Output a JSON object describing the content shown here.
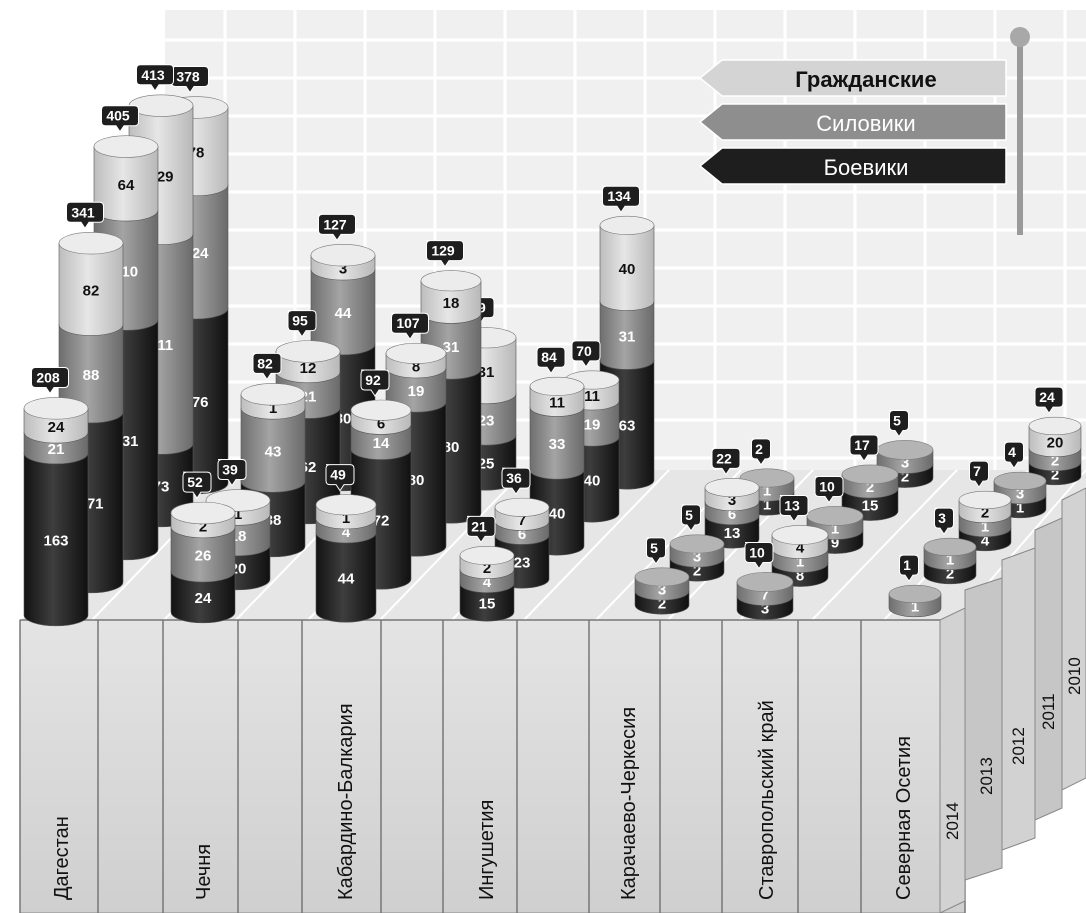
{
  "chart_data": {
    "type": "bar",
    "title": "",
    "regions": [
      "Дагестан",
      "Чечня",
      "Кабардино-Балкария",
      "Ингушетия",
      "Карачаево-Черкесия",
      "Ставропольский край",
      "Северная Осетия"
    ],
    "years": [
      "2014",
      "2013",
      "2012",
      "2011",
      "2010"
    ],
    "legend": {
      "items": [
        {
          "key": "civilians",
          "label": "Гражданские",
          "color": "#d8d8d8"
        },
        {
          "key": "security",
          "label": "Силовики",
          "color": "#8a8a8a"
        },
        {
          "key": "militants",
          "label": "Боевики",
          "color": "#2a2a2a"
        }
      ],
      "position": "top-right"
    },
    "data": [
      {
        "region": "Дагестан",
        "year": "2014",
        "militants": 163,
        "security": 21,
        "civilians": 24,
        "total": 208
      },
      {
        "region": "Дагестан",
        "year": "2013",
        "militants": 171,
        "security": 88,
        "civilians": 82,
        "total": 341
      },
      {
        "region": "Дагестан",
        "year": "2012",
        "militants": 231,
        "security": 110,
        "civilians": 64,
        "total": 405
      },
      {
        "region": "Дагестан",
        "year": "2011",
        "militants": 73,
        "security": 211,
        "civilians": 129,
        "total": 413
      },
      {
        "region": "Дагестан",
        "year": "2010",
        "militants": 176,
        "security": 124,
        "civilians": 78,
        "total": 378
      },
      {
        "region": "Чечня",
        "year": "2014",
        "militants": 24,
        "security": 26,
        "civilians": 2,
        "total": 52
      },
      {
        "region": "Чечня",
        "year": "2013",
        "militants": 20,
        "security": 18,
        "civilians": 1,
        "total": 39
      },
      {
        "region": "Чечня",
        "year": "2012",
        "militants": 38,
        "security": 43,
        "civilians": 1,
        "total": 82
      },
      {
        "region": "Чечня",
        "year": "2011",
        "militants": 62,
        "security": 21,
        "civilians": 12,
        "total": 95
      },
      {
        "region": "Чечня",
        "year": "2010",
        "militants": 80,
        "security": 44,
        "civilians": 3,
        "total": 127
      },
      {
        "region": "Кабардино-Балкария",
        "year": "2014",
        "militants": 44,
        "security": 4,
        "civilians": 1,
        "total": 49
      },
      {
        "region": "Кабардино-Балкария",
        "year": "2013",
        "militants": 72,
        "security": 14,
        "civilians": 6,
        "total": 92
      },
      {
        "region": "Кабардино-Балкария",
        "year": "2012",
        "militants": 80,
        "security": 19,
        "civilians": 8,
        "total": 107
      },
      {
        "region": "Кабардино-Балкария",
        "year": "2011",
        "militants": 80,
        "security": 31,
        "civilians": 18,
        "total": 129
      },
      {
        "region": "Кабардино-Балкария",
        "year": "2010",
        "militants": 25,
        "security": 23,
        "civilians": 31,
        "total": 79
      },
      {
        "region": "Ингушетия",
        "year": "2014",
        "militants": 15,
        "security": 4,
        "civilians": 2,
        "total": 21
      },
      {
        "region": "Ингушетия",
        "year": "2013",
        "militants": 23,
        "security": 6,
        "civilians": 7,
        "total": 36
      },
      {
        "region": "Ингушетия",
        "year": "2012",
        "militants": 40,
        "security": 33,
        "civilians": 11,
        "total": 84
      },
      {
        "region": "Ингушетия",
        "year": "2011",
        "militants": 40,
        "security": 19,
        "civilians": 11,
        "total": 70
      },
      {
        "region": "Ингушетия",
        "year": "2010",
        "militants": 63,
        "security": 31,
        "civilians": 40,
        "total": 134
      },
      {
        "region": "Карачаево-Черкесия",
        "year": "2014",
        "militants": 2,
        "security": 3,
        "civilians": 0,
        "total": 5
      },
      {
        "region": "Карачаево-Черкесия",
        "year": "2013",
        "militants": 2,
        "security": 3,
        "civilians": 0,
        "total": 5
      },
      {
        "region": "Карачаево-Черкесия",
        "year": "2012",
        "militants": 13,
        "security": 6,
        "civilians": 3,
        "total": 22
      },
      {
        "region": "Карачаево-Черкесия",
        "year": "2011",
        "militants": 1,
        "security": 1,
        "civilians": 0,
        "total": 2
      },
      {
        "region": "Ставропольский край",
        "year": "2014",
        "militants": 3,
        "security": 7,
        "civilians": 0,
        "total": 10
      },
      {
        "region": "Ставропольский край",
        "year": "2013",
        "militants": 8,
        "security": 1,
        "civilians": 4,
        "total": 13
      },
      {
        "region": "Ставропольский край",
        "year": "2012",
        "militants": 9,
        "security": 1,
        "civilians": 0,
        "total": 10
      },
      {
        "region": "Ставропольский край",
        "year": "2011",
        "militants": 15,
        "security": 2,
        "civilians": 0,
        "total": 17
      },
      {
        "region": "Ставропольский край",
        "year": "2010",
        "militants": 2,
        "security": 3,
        "civilians": 0,
        "total": 5
      },
      {
        "region": "Северная Осетия",
        "year": "2014",
        "militants": 0,
        "security": 1,
        "civilians": 0,
        "total": 1
      },
      {
        "region": "Северная Осетия",
        "year": "2013",
        "militants": 2,
        "security": 1,
        "civilians": 0,
        "total": 3
      },
      {
        "region": "Северная Осетия",
        "year": "2012",
        "militants": 4,
        "security": 1,
        "civilians": 2,
        "total": 7
      },
      {
        "region": "Северная Осетия",
        "year": "2011",
        "militants": 1,
        "security": 3,
        "civilians": 0,
        "total": 4
      },
      {
        "region": "Северная Осетия",
        "year": "2010",
        "militants": 2,
        "security": 2,
        "civilians": 20,
        "total": 24
      }
    ]
  }
}
